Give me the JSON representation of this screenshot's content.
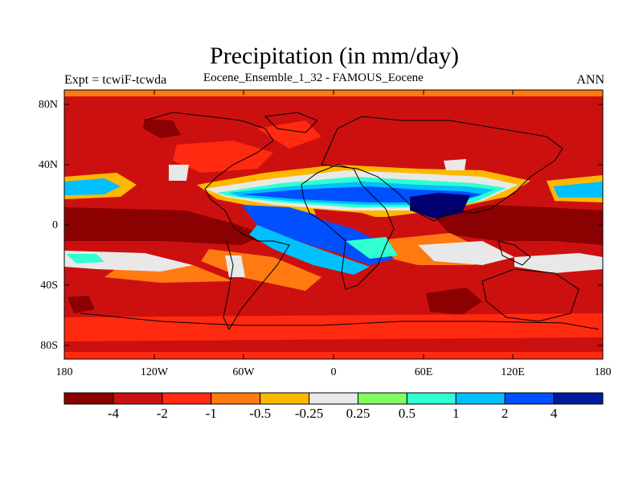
{
  "title": "Precipitation (in mm/day)",
  "left_label": "Expt = tcwiF-tcwda",
  "center_label": "Eocene_Ensemble_1_32 - FAMOUS_Eocene",
  "right_label": "ANN",
  "lat_labels": [
    "80N",
    "40N",
    "0",
    "40S",
    "80S"
  ],
  "lon_labels": [
    "180",
    "120W",
    "60W",
    "0",
    "60E",
    "120E",
    "180"
  ],
  "colorbar": {
    "colors": [
      "#8b0000",
      "#cc1010",
      "#ff2a10",
      "#ff7a10",
      "#ffb800",
      "#e8e8e8",
      "#80ff60",
      "#30ffd0",
      "#00c0ff",
      "#0050ff",
      "#001a9a",
      "#000070"
    ],
    "labels": [
      "-4",
      "-2",
      "-1",
      "-0.5",
      "-0.25",
      "0.25",
      "0.5",
      "1",
      "2",
      "4"
    ]
  },
  "palette": {
    "ocean_bg": "#cc1010",
    "land_line": "#000000"
  }
}
